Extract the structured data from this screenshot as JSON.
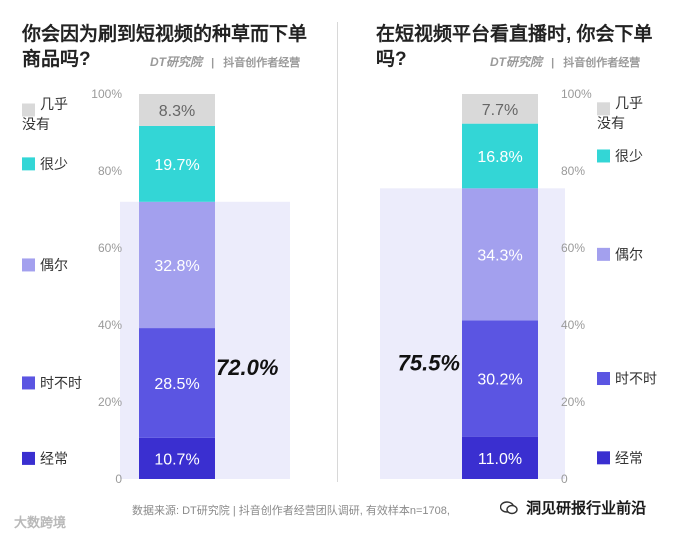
{
  "panels": [
    {
      "title_line1": "你会因为刷到短视频的种草而下单",
      "title_line2": "商品吗?",
      "brand_dt": "DT研究院",
      "brand_sep": "|",
      "brand_name": "抖音创作者经营",
      "highlight_label": "72.0%"
    },
    {
      "title_line1": "在短视频平台看直播时, 你会下单",
      "title_line2": "吗?",
      "brand_dt": "DT研究院",
      "brand_sep": "|",
      "brand_name": "抖音创作者经营",
      "highlight_label": "75.5%"
    }
  ],
  "footer": {
    "source": "数据来源: DT研究院 | 抖音创作者经营团队调研, 有效样本n=1708,",
    "watermark": "大数跨境",
    "wechat_account": "洞见研报行业前沿"
  },
  "colors": {
    "几乎没有": "#d9d9d9",
    "很少": "#33d6d6",
    "偶尔": "#a3a0ee",
    "时不时": "#5b55e2",
    "经常": "#3a2fd0",
    "highlight": "#ececfb"
  },
  "chart_data": [
    {
      "type": "bar",
      "subtype": "stacked-100",
      "title": "你会因为刷到短视频的种草而下单商品吗?",
      "categories": [
        "经常",
        "时不时",
        "偶尔",
        "很少",
        "几乎没有"
      ],
      "values": [
        10.7,
        28.5,
        32.8,
        19.7,
        8.3
      ],
      "value_labels": [
        "10.7%",
        "28.5%",
        "32.8%",
        "19.7%",
        "8.3%"
      ],
      "ylim": [
        0,
        100
      ],
      "yticks": [
        "0",
        "20%",
        "40%",
        "60%",
        "80%",
        "100%"
      ],
      "legend_labels": [
        "几乎没有",
        "很少",
        "偶尔",
        "时不时",
        "经常"
      ],
      "legend": "left",
      "highlight": 72.0,
      "highlight_label": "72.0%",
      "grid": false
    },
    {
      "type": "bar",
      "subtype": "stacked-100",
      "title": "在短视频平台看直播时, 你会下单吗?",
      "categories": [
        "经常",
        "时不时",
        "偶尔",
        "很少",
        "几乎没有"
      ],
      "values": [
        11.0,
        30.2,
        34.3,
        16.8,
        7.7
      ],
      "value_labels": [
        "11.0%",
        "30.2%",
        "34.3%",
        "16.8%",
        "7.7%"
      ],
      "ylim": [
        0,
        100
      ],
      "yticks": [
        "0",
        "20%",
        "40%",
        "60%",
        "80%",
        "100%"
      ],
      "legend_labels": [
        "几乎没有",
        "很少",
        "偶尔",
        "时不时",
        "经常"
      ],
      "legend": "right",
      "highlight": 75.5,
      "highlight_label": "75.5%",
      "grid": false
    }
  ]
}
